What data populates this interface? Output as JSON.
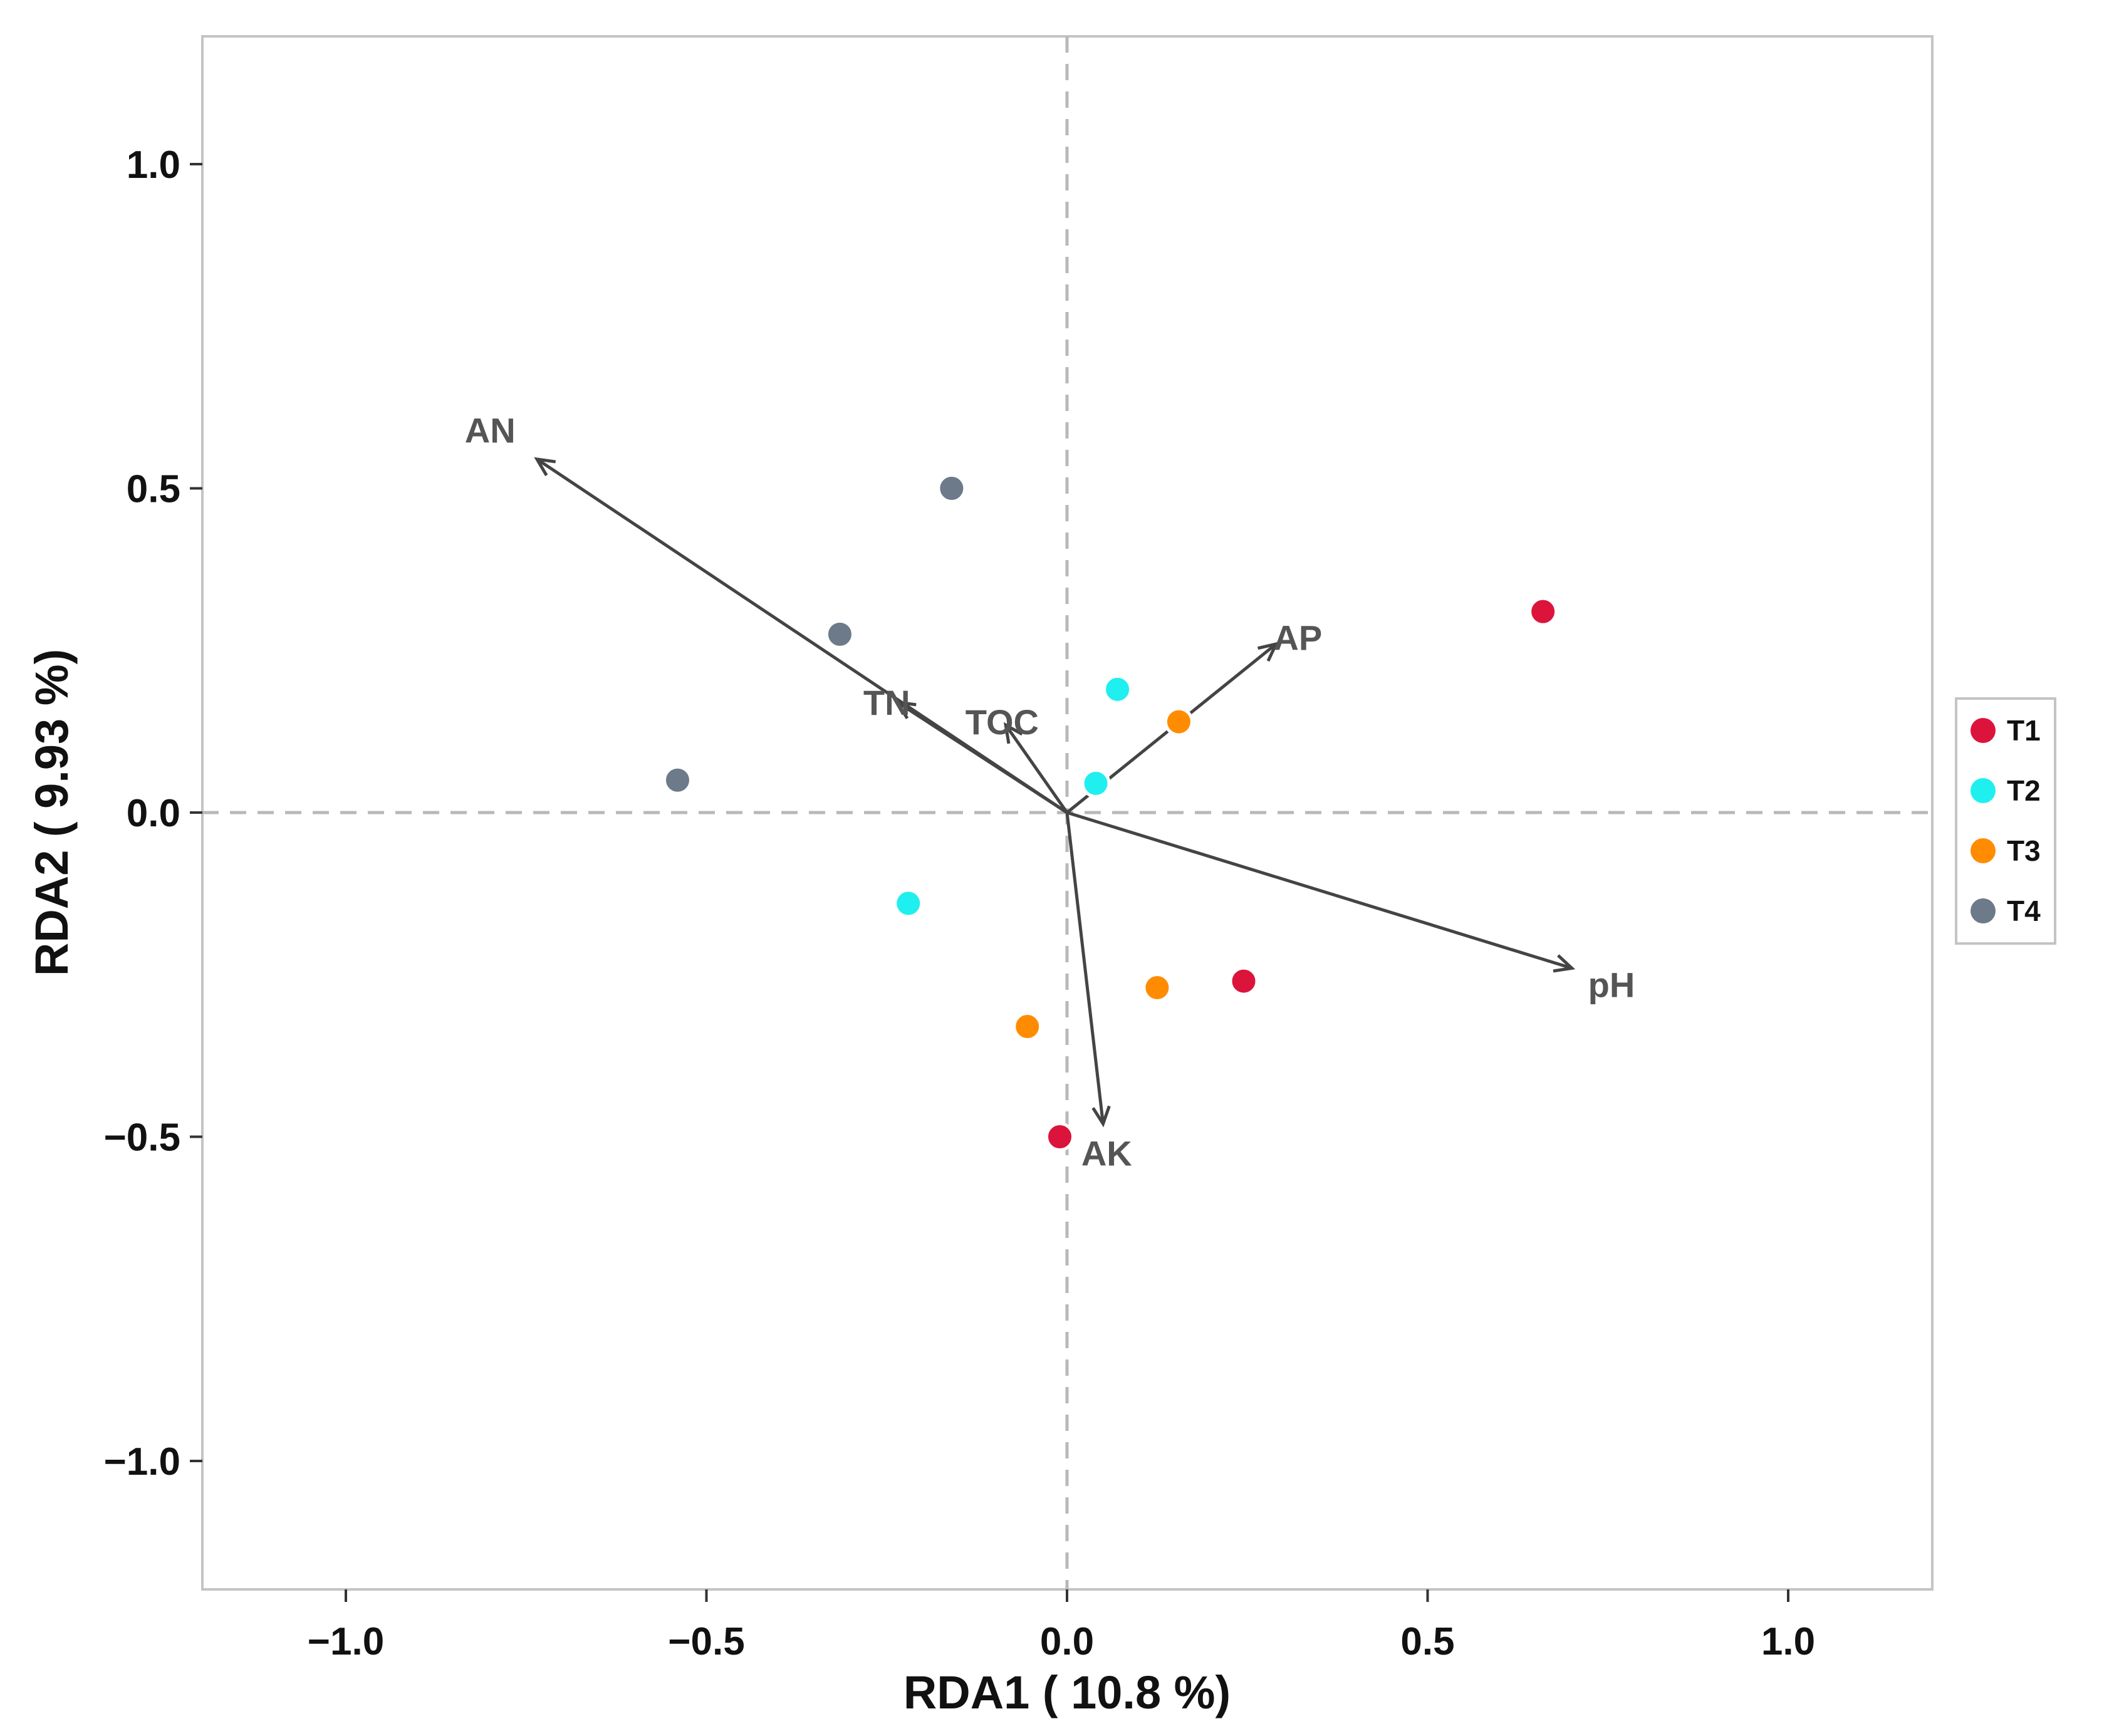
{
  "chart_data": {
    "type": "scatter",
    "xlabel": "RDA1 ( 10.8 %)",
    "ylabel": "RDA2 ( 9.93 %)",
    "xlim": [
      -1.2,
      1.2
    ],
    "ylim": [
      -1.2,
      1.2
    ],
    "x_ticks": [
      {
        "value": -1.0,
        "label": "−1.0"
      },
      {
        "value": -0.5,
        "label": "−0.5"
      },
      {
        "value": 0.0,
        "label": "0.0"
      },
      {
        "value": 0.5,
        "label": "0.5"
      },
      {
        "value": 1.0,
        "label": "1.0"
      }
    ],
    "y_ticks": [
      {
        "value": 1.0,
        "label": "1.0"
      },
      {
        "value": 0.5,
        "label": "0.5"
      },
      {
        "value": 0.0,
        "label": "0.0"
      },
      {
        "value": -0.5,
        "label": "−0.5"
      },
      {
        "value": -1.0,
        "label": "−1.0"
      }
    ],
    "grid": false,
    "reference_lines": "dashed at x=0 and y=0",
    "legend_position": "right",
    "series": [
      {
        "name": "T1",
        "color": "#DC143C",
        "points": [
          {
            "x": 0.66,
            "y": 0.31
          },
          {
            "x": 0.245,
            "y": -0.26
          },
          {
            "x": -0.01,
            "y": -0.5
          }
        ]
      },
      {
        "name": "T2",
        "color": "#1FEFEF",
        "points": [
          {
            "x": 0.07,
            "y": 0.19
          },
          {
            "x": 0.04,
            "y": 0.045
          },
          {
            "x": -0.22,
            "y": -0.14
          }
        ]
      },
      {
        "name": "T3",
        "color": "#FF8C00",
        "points": [
          {
            "x": 0.155,
            "y": 0.14
          },
          {
            "x": 0.125,
            "y": -0.27
          },
          {
            "x": -0.055,
            "y": -0.33
          }
        ]
      },
      {
        "name": "T4",
        "color": "#6C7A89",
        "points": [
          {
            "x": -0.16,
            "y": 0.5
          },
          {
            "x": -0.315,
            "y": 0.275
          },
          {
            "x": -0.54,
            "y": 0.05
          }
        ]
      }
    ],
    "arrows": [
      {
        "label": "AN",
        "x": -0.735,
        "y": 0.545,
        "label_x": -0.8,
        "label_y": 0.59
      },
      {
        "label": "AP",
        "x": 0.29,
        "y": 0.26,
        "label_x": 0.32,
        "label_y": 0.27
      },
      {
        "label": "TN",
        "x": -0.235,
        "y": 0.17,
        "label_x": -0.25,
        "label_y": 0.17
      },
      {
        "label": "TOC",
        "x": -0.085,
        "y": 0.135,
        "label_x": -0.09,
        "label_y": 0.14
      },
      {
        "label": "pH",
        "x": 0.7,
        "y": -0.24,
        "label_x": 0.755,
        "label_y": -0.265
      },
      {
        "label": "AK",
        "x": 0.05,
        "y": -0.48,
        "label_x": 0.055,
        "label_y": -0.525
      }
    ]
  }
}
